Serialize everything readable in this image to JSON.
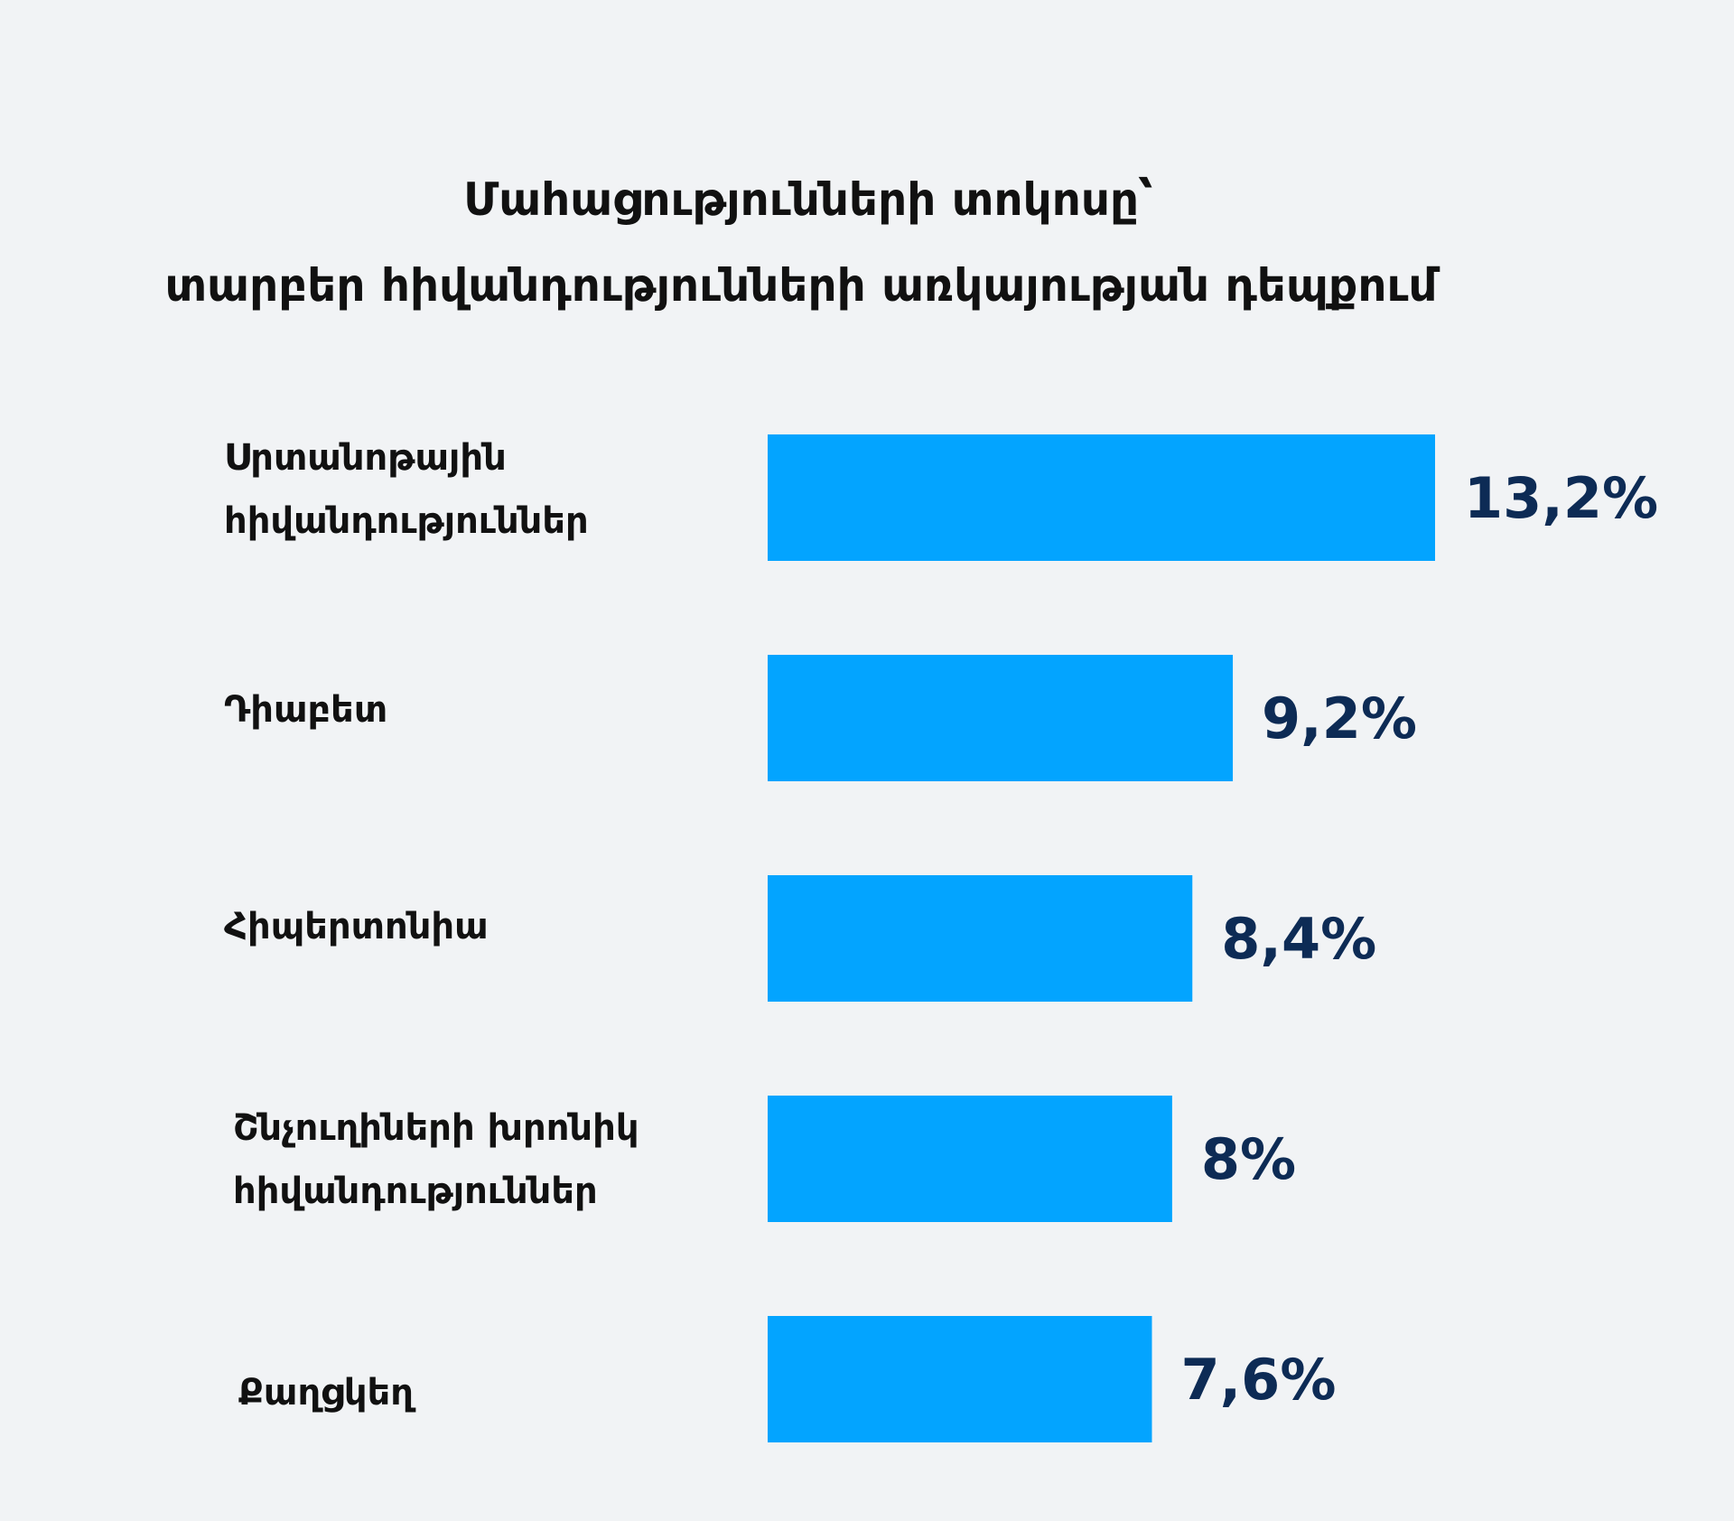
{
  "chart_data": {
    "type": "bar",
    "orientation": "horizontal",
    "title_lines": [
      "Մահացությունների տոկոսը՝",
      "տարբեր հիվանդությունների առկայության դեպքում"
    ],
    "categories": [
      [
        "Սրտանոթային",
        "հիվանդություններ"
      ],
      [
        "Դիաբետ"
      ],
      [
        "Հիպերտոնիա"
      ],
      [
        "Շնչուղիների խրոնիկ",
        "հիվանդություններ"
      ],
      [
        "Քաղցկեղ"
      ]
    ],
    "values": [
      13.2,
      9.2,
      8.4,
      8,
      7.6
    ],
    "value_labels": [
      "13,2%",
      "9,2%",
      "8,4%",
      "8%",
      "7,6%"
    ],
    "xlim": [
      0,
      13.2
    ],
    "grid": false,
    "legend": "none",
    "colors": {
      "bar": "#03a4ff",
      "value_text": "#0d2b55",
      "label_text": "#111111",
      "background": "#f1f3f5"
    }
  }
}
